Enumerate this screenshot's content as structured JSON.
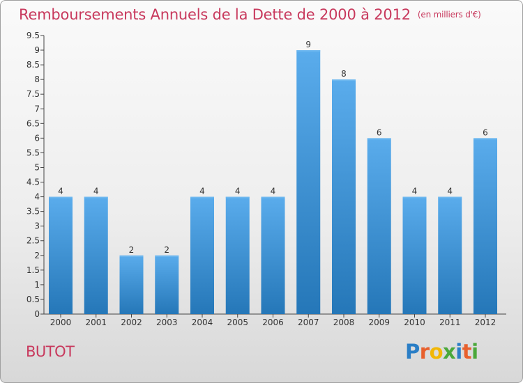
{
  "title": "Remboursements Annuels de la Dette de 2000 à 2012",
  "unit": "(en milliers d'€)",
  "place": "BUTOT",
  "logo": {
    "text": "Proxiti",
    "letter_colors": [
      "#2a7ec6",
      "#e8602d",
      "#f2b705",
      "#4aa83a",
      "#2a7ec6",
      "#e8602d",
      "#4aa83a"
    ]
  },
  "chart_data": {
    "type": "bar",
    "title": "Remboursements Annuels de la Dette de 2000 à 2012",
    "xlabel": "",
    "ylabel": "",
    "categories": [
      "2000",
      "2001",
      "2002",
      "2003",
      "2004",
      "2005",
      "2006",
      "2007",
      "2008",
      "2009",
      "2010",
      "2011",
      "2012"
    ],
    "values": [
      4,
      4,
      2,
      2,
      4,
      4,
      4,
      9,
      8,
      6,
      4,
      4,
      6
    ],
    "data_labels": [
      "4",
      "4",
      "2",
      "2",
      "4",
      "4",
      "4",
      "9",
      "8",
      "6",
      "4",
      "4",
      "6"
    ],
    "ylim": [
      0,
      9.5
    ],
    "yticks": [
      "0",
      "0.5",
      "1",
      "1.5",
      "2",
      "2.5",
      "3",
      "3.5",
      "4",
      "4.5",
      "5",
      "5.5",
      "6",
      "6.5",
      "7",
      "7.5",
      "8",
      "8.5",
      "9",
      "9.5"
    ],
    "ytick_values": [
      0,
      0.5,
      1,
      1.5,
      2,
      2.5,
      3,
      3.5,
      4,
      4.5,
      5,
      5.5,
      6,
      6.5,
      7,
      7.5,
      8,
      8.5,
      9,
      9.5
    ],
    "grid": false,
    "legend": "none",
    "colors": {
      "bar_light": "#5aacec",
      "bar_dark": "#2577b8",
      "text": "#333333",
      "axis": "#444444"
    }
  }
}
